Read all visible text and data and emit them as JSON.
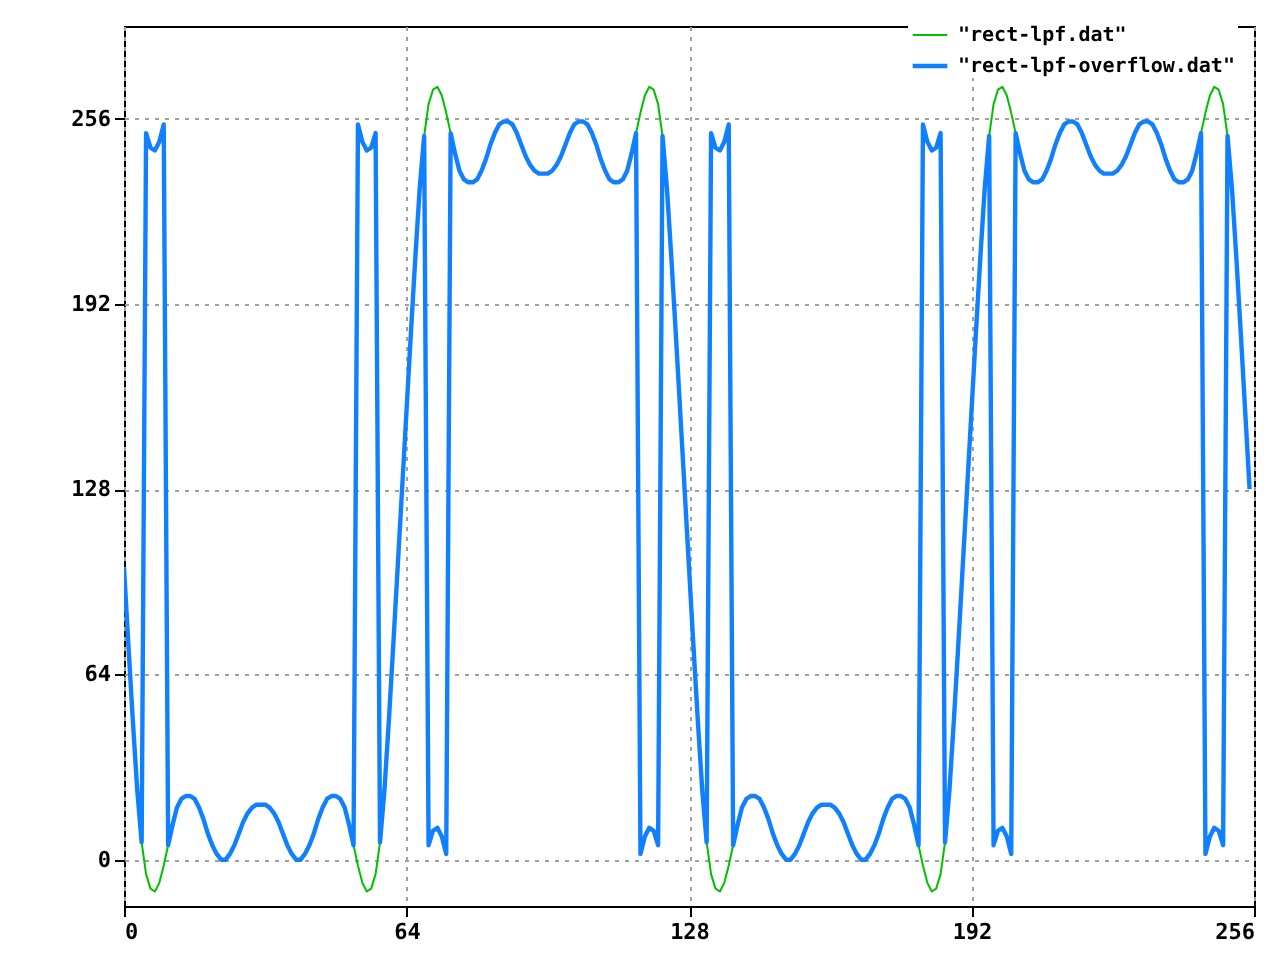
{
  "chart_data": {
    "type": "line",
    "x": [
      0,
      1,
      2,
      3,
      4,
      5,
      6,
      7,
      8,
      9,
      10,
      11,
      12,
      13,
      14,
      15,
      16,
      17,
      18,
      19,
      20,
      21,
      22,
      23,
      24,
      25,
      26,
      27,
      28,
      29,
      30,
      31,
      32,
      33,
      34,
      35,
      36,
      37,
      38,
      39,
      40,
      41,
      42,
      43,
      44,
      45,
      46,
      47,
      48,
      49,
      50,
      51,
      52,
      53,
      54,
      55,
      56,
      57,
      58,
      59,
      60,
      61,
      62,
      63,
      64,
      65,
      66,
      67,
      68,
      69,
      70,
      71,
      72,
      73,
      74,
      75,
      76,
      77,
      78,
      79,
      80,
      81,
      82,
      83,
      84,
      85,
      86,
      87,
      88,
      89,
      90,
      91,
      92,
      93,
      94,
      95,
      96,
      97,
      98,
      99,
      100,
      101,
      102,
      103,
      104,
      105,
      106,
      107,
      108,
      109,
      110,
      111,
      112,
      113,
      114,
      115,
      116,
      117,
      118,
      119,
      120,
      121,
      122,
      123,
      124,
      125,
      126,
      127,
      128,
      129,
      130,
      131,
      132,
      133,
      134,
      135,
      136,
      137,
      138,
      139,
      140,
      141,
      142,
      143,
      144,
      145,
      146,
      147,
      148,
      149,
      150,
      151,
      152,
      153,
      154,
      155,
      156,
      157,
      158,
      159,
      160,
      161,
      162,
      163,
      164,
      165,
      166,
      167,
      168,
      169,
      170,
      171,
      172,
      173,
      174,
      175,
      176,
      177,
      178,
      179,
      180,
      181,
      182,
      183,
      184,
      185,
      186,
      187,
      188,
      189,
      190,
      191,
      192,
      193,
      194,
      195,
      196,
      197,
      198,
      199,
      200,
      201,
      202,
      203,
      204,
      205,
      206,
      207,
      208,
      209,
      210,
      211,
      212,
      213,
      214,
      215,
      216,
      217,
      218,
      219,
      220,
      221,
      222,
      223,
      224,
      225,
      226,
      227,
      228,
      229,
      230,
      231,
      232,
      233,
      234,
      235,
      236,
      237,
      238,
      239,
      240,
      241,
      242,
      243,
      244,
      245,
      246,
      247,
      248,
      249,
      250,
      251,
      252,
      253,
      254,
      255
    ],
    "series": [
      {
        "name": "\"rect-lpf.dat\"",
        "color": "#00c000",
        "x": [
          4,
          5,
          6,
          7,
          8,
          9,
          10,
          52,
          53,
          54,
          55,
          56,
          57,
          58,
          68,
          69,
          70,
          71,
          72,
          73,
          74,
          116,
          117,
          118,
          119,
          120,
          121,
          122,
          132,
          133,
          134,
          135,
          136,
          137,
          138,
          180,
          181,
          182,
          183,
          184,
          185,
          186,
          196,
          197,
          198,
          199,
          200,
          201,
          202,
          244,
          245,
          246,
          247,
          248,
          249,
          250
        ],
        "values": [
          6,
          -5,
          -10,
          -11,
          -8,
          -2,
          5,
          5,
          -2,
          -8,
          -11,
          -10,
          -5,
          6,
          250,
          261,
          266,
          267,
          264,
          258,
          251,
          251,
          258,
          264,
          267,
          266,
          261,
          250,
          6,
          -5,
          -10,
          -11,
          -8,
          -2,
          5,
          5,
          -2,
          -8,
          -11,
          -10,
          -5,
          6,
          250,
          261,
          266,
          267,
          264,
          258,
          251,
          251,
          258,
          264,
          267,
          266,
          261,
          250
        ]
      },
      {
        "name": "\"rect-lpf-overflow.dat\"",
        "color": "#1080ff",
        "values": [
          101,
          74,
          48,
          24,
          6,
          251,
          246,
          245,
          248,
          254,
          5,
          12,
          18,
          21,
          22,
          22,
          21,
          18,
          14,
          9,
          5,
          2,
          0,
          0,
          2,
          5,
          9,
          13,
          16,
          18,
          19,
          19,
          19,
          18,
          16,
          13,
          9,
          5,
          2,
          0,
          0,
          2,
          5,
          9,
          14,
          18,
          21,
          22,
          22,
          21,
          18,
          12,
          5,
          254,
          248,
          245,
          246,
          251,
          6,
          24,
          48,
          74,
          101,
          128,
          155,
          182,
          208,
          232,
          250,
          5,
          10,
          11,
          8,
          2,
          251,
          244,
          238,
          235,
          234,
          234,
          235,
          238,
          242,
          247,
          251,
          254,
          255,
          255,
          254,
          251,
          247,
          243,
          240,
          238,
          237,
          237,
          237,
          238,
          240,
          243,
          247,
          251,
          254,
          255,
          255,
          254,
          251,
          247,
          242,
          238,
          235,
          234,
          234,
          235,
          238,
          244,
          251,
          2,
          8,
          11,
          10,
          5,
          250,
          232,
          208,
          182,
          155,
          128,
          101,
          74,
          48,
          24,
          6,
          251,
          246,
          245,
          248,
          254,
          5,
          12,
          18,
          21,
          22,
          22,
          21,
          18,
          14,
          9,
          5,
          2,
          0,
          0,
          2,
          5,
          9,
          13,
          16,
          18,
          19,
          19,
          19,
          18,
          16,
          13,
          9,
          5,
          2,
          0,
          0,
          2,
          5,
          9,
          14,
          18,
          21,
          22,
          22,
          21,
          18,
          12,
          5,
          254,
          248,
          245,
          246,
          251,
          6,
          24,
          48,
          74,
          101,
          128,
          155,
          182,
          208,
          232,
          250,
          5,
          10,
          11,
          8,
          2,
          251,
          244,
          238,
          235,
          234,
          234,
          235,
          238,
          242,
          247,
          251,
          254,
          255,
          255,
          254,
          251,
          247,
          243,
          240,
          238,
          237,
          237,
          237,
          238,
          240,
          243,
          247,
          251,
          254,
          255,
          255,
          254,
          251,
          247,
          242,
          238,
          235,
          234,
          234,
          235,
          238,
          244,
          251,
          2,
          8,
          11,
          10,
          5,
          250,
          232,
          208,
          182,
          155,
          128
        ]
      }
    ],
    "xlim": [
      0,
      256
    ],
    "xticks": [
      0,
      64,
      128,
      192,
      256
    ],
    "ylim": [
      -16,
      288
    ],
    "yticks": [
      0,
      64,
      128,
      192,
      256
    ],
    "grid": true,
    "legend": "top right"
  }
}
